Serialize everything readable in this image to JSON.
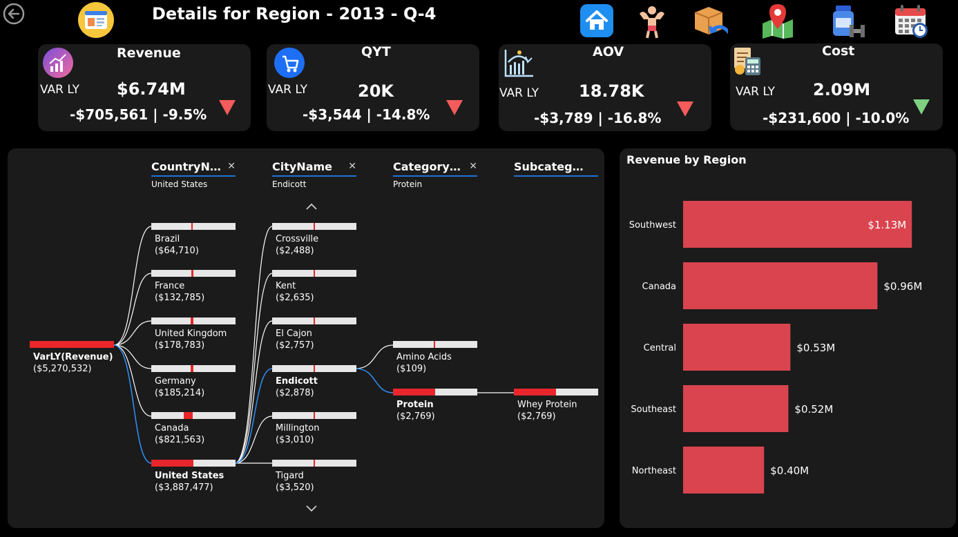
{
  "header": {
    "title": "Details for Region - 2013 - Q-4",
    "nav_icons": [
      "home-icon",
      "fitness-icon",
      "return-box-icon",
      "map-icon",
      "supplement-icon",
      "calendar-icon"
    ]
  },
  "kpis": [
    {
      "title": "Revenue",
      "label": "VAR LY",
      "value": "$6.74M",
      "variance": "-$705,561 | -9.5%",
      "trend": "down",
      "trend_color": "#f45b5b",
      "icon": "growth-chart-icon"
    },
    {
      "title": "QYT",
      "label": "VAR LY",
      "value": "20K",
      "variance": "-$3,544 | -14.8%",
      "trend": "down",
      "trend_color": "#f45b5b",
      "icon": "cart-icon"
    },
    {
      "title": "AOV",
      "label": "VAR LY",
      "value": "18.78K",
      "variance": "-$3,789 | -16.8%",
      "trend": "down",
      "trend_color": "#f45b5b",
      "icon": "graph-sun-icon"
    },
    {
      "title": "Cost",
      "label": "VAR LY",
      "value": "2.09M",
      "variance": "-$231,600 | -10.0%",
      "trend": "down",
      "trend_color": "#7dd181",
      "icon": "calculator-icon"
    }
  ],
  "tree": {
    "levels": [
      {
        "name": "CountryName",
        "filter": "United States"
      },
      {
        "name": "CityName",
        "filter": "Endicott"
      },
      {
        "name": "CategoryName",
        "filter": "Protein"
      },
      {
        "name": "SubcategoryName",
        "filter": ""
      }
    ],
    "root": {
      "label": "VarLY(Revenue)",
      "value": "($5,270,532)"
    },
    "countries": [
      {
        "label": "Brazil",
        "value": "($64,710)"
      },
      {
        "label": "France",
        "value": "($132,785)"
      },
      {
        "label": "United Kingdom",
        "value": "($178,783)"
      },
      {
        "label": "Germany",
        "value": "($185,214)"
      },
      {
        "label": "Canada",
        "value": "($821,563)"
      },
      {
        "label": "United States",
        "value": "($3,887,477)"
      }
    ],
    "cities": [
      {
        "label": "Crossville",
        "value": "($2,488)"
      },
      {
        "label": "Kent",
        "value": "($2,635)"
      },
      {
        "label": "El Cajon",
        "value": "($2,757)"
      },
      {
        "label": "Endicott",
        "value": "($2,878)"
      },
      {
        "label": "Millington",
        "value": "($3,010)"
      },
      {
        "label": "Tigard",
        "value": "($3,520)"
      }
    ],
    "categories": [
      {
        "label": "Amino Acids",
        "value": "($109)"
      },
      {
        "label": "Protein",
        "value": "($2,769)"
      }
    ],
    "subcategories": [
      {
        "label": "Whey Protein",
        "value": "($2,769)"
      }
    ]
  },
  "chart_data": {
    "type": "bar",
    "orientation": "horizontal",
    "title": "Revenue by Region",
    "categories": [
      "Southwest",
      "Canada",
      "Central",
      "Southeast",
      "Northeast"
    ],
    "values": [
      1.13,
      0.96,
      0.53,
      0.52,
      0.4
    ],
    "value_labels": [
      "$1.13M",
      "$0.96M",
      "$0.53M",
      "$0.52M",
      "$0.40M"
    ],
    "unit": "$M",
    "xlim": [
      0,
      1.16
    ],
    "bar_color": "#d9444f",
    "xlabel": "",
    "ylabel": ""
  }
}
